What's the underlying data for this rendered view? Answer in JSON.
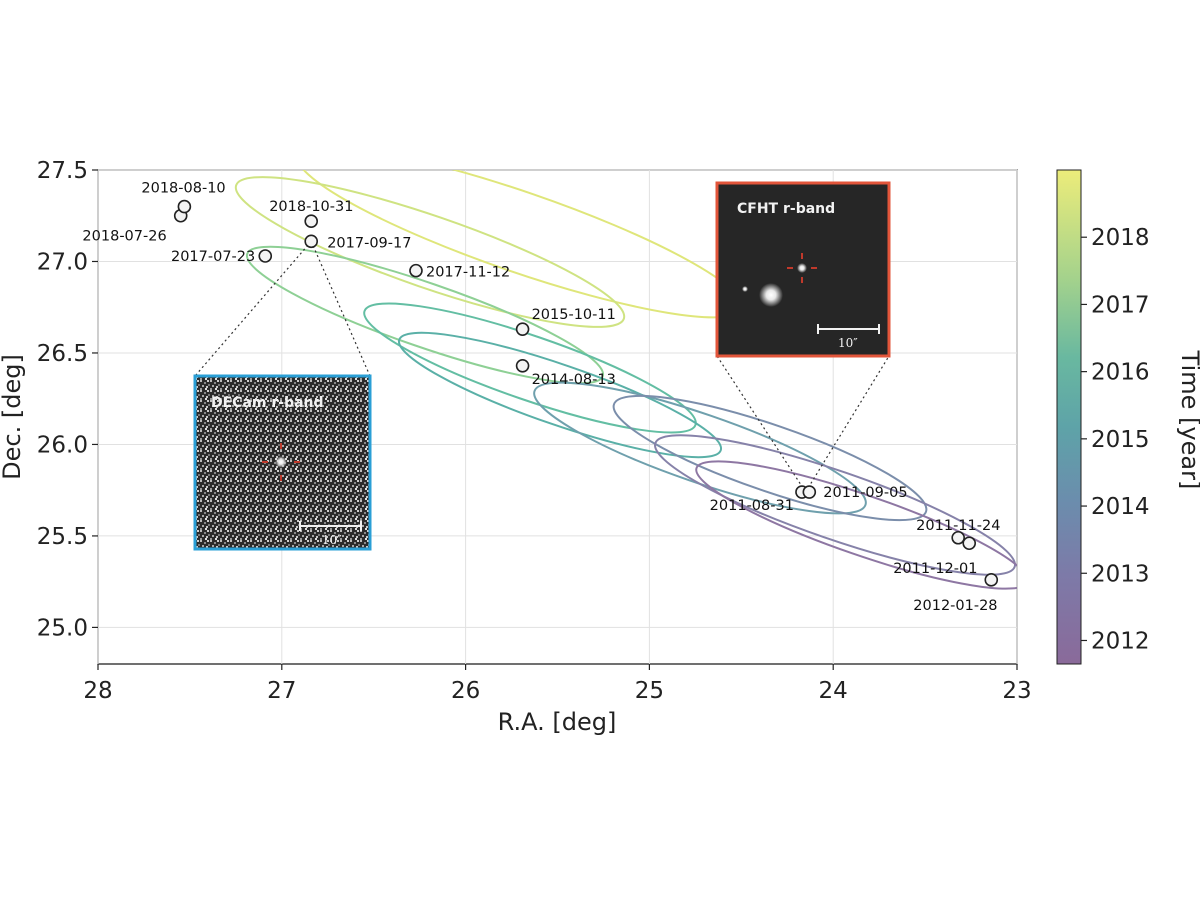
{
  "chart_data": {
    "type": "scatter",
    "xlabel": "R.A. [deg]",
    "ylabel": "Dec. [deg]",
    "xlim": [
      28,
      23
    ],
    "ylim": [
      24.8,
      27.5
    ],
    "x_ticks": [
      "28",
      "27",
      "26",
      "25",
      "24",
      "23"
    ],
    "y_ticks": [
      "25.0",
      "25.5",
      "26.0",
      "26.5",
      "27.0",
      "27.5"
    ],
    "x_inverted": true,
    "grid": true,
    "colorbar": {
      "label": "Time [year]",
      "range": [
        2011.65,
        2019.0
      ],
      "ticks": [
        "2012",
        "2013",
        "2014",
        "2015",
        "2016",
        "2017",
        "2018"
      ],
      "colormap": "viridis"
    },
    "points": [
      {
        "label": "2011-08-31",
        "x": 24.17,
        "y": 25.74
      },
      {
        "label": "2011-09-05",
        "x": 24.13,
        "y": 25.74
      },
      {
        "label": "2011-11-24",
        "x": 23.32,
        "y": 25.49
      },
      {
        "label": "2011-12-01",
        "x": 23.26,
        "y": 25.46
      },
      {
        "label": "2012-01-28",
        "x": 23.14,
        "y": 25.26
      },
      {
        "label": "2014-08-13",
        "x": 25.69,
        "y": 26.43
      },
      {
        "label": "2015-10-11",
        "x": 25.69,
        "y": 26.63
      },
      {
        "label": "2017-07-23",
        "x": 27.09,
        "y": 27.03
      },
      {
        "label": "2017-09-17",
        "x": 26.84,
        "y": 27.11
      },
      {
        "label": "2017-11-12",
        "x": 26.27,
        "y": 26.95
      },
      {
        "label": "2018-07-26",
        "x": 27.55,
        "y": 27.25
      },
      {
        "label": "2018-08-10",
        "x": 27.53,
        "y": 27.3
      },
      {
        "label": "2018-10-31",
        "x": 26.84,
        "y": 27.22
      }
    ],
    "insets": [
      {
        "title": "DECam r-band",
        "scale_label": "10″",
        "border_color": "#2a9fd6"
      },
      {
        "title": "CFHT r-band",
        "scale_label": "10″",
        "border_color": "#e2553a"
      }
    ]
  }
}
